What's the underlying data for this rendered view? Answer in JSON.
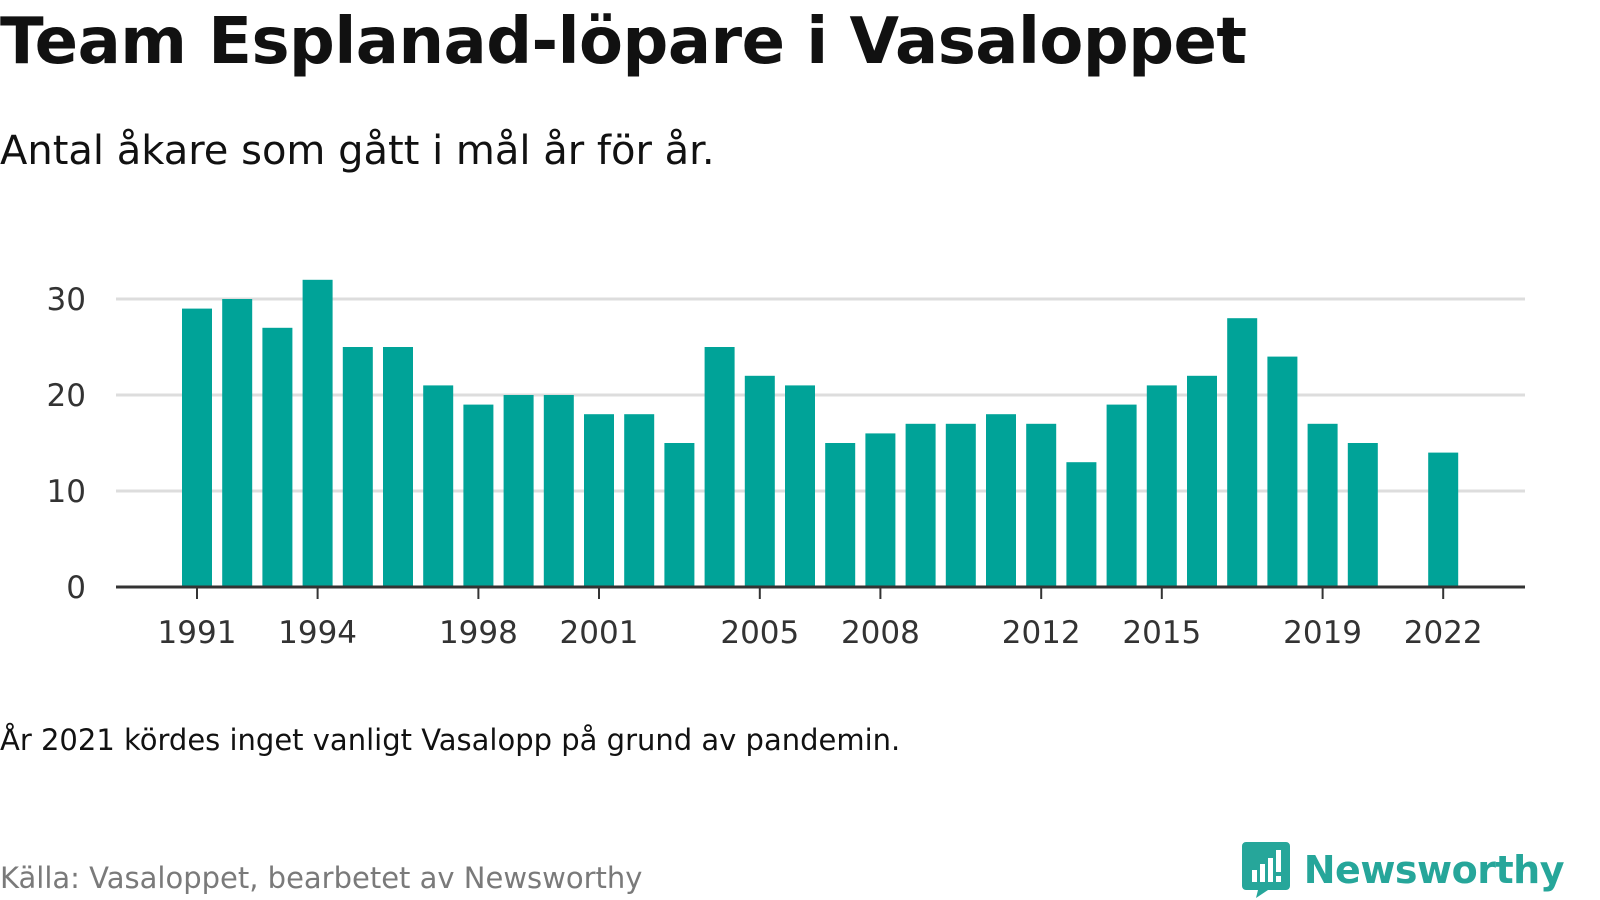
{
  "header": {
    "title": "Team Esplanad-löpare i Vasaloppet",
    "subtitle": "Antal åkare som gått i mål år för år."
  },
  "footer": {
    "note": "År 2021 kördes inget vanligt Vasalopp på grund av pandemin.",
    "source": "Källa: Vasaloppet, bearbetet av Newsworthy",
    "logo_text": "Newsworthy",
    "logo_icon": "newsworthy-bars-icon"
  },
  "colors": {
    "bar": "#00a398",
    "gridline": "#dddddd",
    "axis": "#333333",
    "tick_text": "#333333",
    "logo": "#26a69a"
  },
  "chart_data": {
    "type": "bar",
    "title": "Team Esplanad-löpare i Vasaloppet",
    "subtitle": "Antal åkare som gått i mål år för år.",
    "xlabel": "",
    "ylabel": "",
    "ylim": [
      0,
      32
    ],
    "y_ticks": [
      0,
      10,
      20,
      30
    ],
    "x_tick_labels": [
      1991,
      1994,
      1998,
      2001,
      2005,
      2008,
      2012,
      2015,
      2019,
      2022
    ],
    "grid": "horizontal",
    "legend": "none",
    "categories": [
      1991,
      1992,
      1993,
      1994,
      1995,
      1996,
      1997,
      1998,
      1999,
      2000,
      2001,
      2002,
      2003,
      2004,
      2005,
      2006,
      2007,
      2008,
      2009,
      2010,
      2011,
      2012,
      2013,
      2014,
      2015,
      2016,
      2017,
      2018,
      2019,
      2020,
      2021,
      2022
    ],
    "values": [
      29,
      30,
      27,
      32,
      25,
      25,
      21,
      19,
      20,
      20,
      18,
      18,
      15,
      25,
      22,
      21,
      15,
      16,
      17,
      17,
      18,
      17,
      13,
      19,
      21,
      22,
      28,
      24,
      17,
      15,
      null,
      14
    ]
  }
}
